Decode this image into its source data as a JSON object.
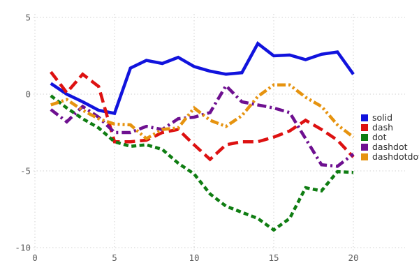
{
  "chart_data": {
    "type": "line",
    "title": "",
    "xlabel": "",
    "ylabel": "",
    "grid": true,
    "legend_position": "right",
    "x_ticks": [
      0,
      5,
      10,
      15,
      20
    ],
    "y_ticks": [
      5,
      0,
      -5,
      -10
    ],
    "xlim": [
      0,
      23.2
    ],
    "ylim": [
      -10.9,
      5.5
    ],
    "x": [
      1,
      2,
      3,
      4,
      5,
      6,
      7,
      8,
      9,
      10,
      11,
      12,
      13,
      14,
      15,
      16,
      17,
      18,
      19,
      20
    ],
    "series": [
      {
        "name": "solid",
        "color": "#1113dd",
        "dash_style": "solid",
        "values": [
          0.7,
          0.0,
          -0.5,
          -1.05,
          -1.25,
          1.7,
          2.2,
          2.0,
          2.4,
          1.8,
          1.5,
          1.3,
          1.4,
          3.3,
          2.5,
          2.55,
          2.25,
          2.6,
          2.75,
          1.3
        ]
      },
      {
        "name": "dash",
        "color": "#dd1111",
        "dash_style": "dash",
        "values": [
          1.45,
          0.1,
          1.3,
          0.5,
          -3.1,
          -3.1,
          -3.0,
          -2.5,
          -2.3,
          -3.3,
          -4.25,
          -3.3,
          -3.1,
          -3.1,
          -2.8,
          -2.4,
          -1.7,
          -2.3,
          -3.0,
          -4.1
        ]
      },
      {
        "name": "dot",
        "color": "#0f7d12",
        "dash_style": "dot",
        "values": [
          -0.1,
          -0.9,
          -1.6,
          -2.2,
          -3.1,
          -3.4,
          -3.3,
          -3.6,
          -4.5,
          -5.2,
          -6.5,
          -7.3,
          -7.7,
          -8.1,
          -8.85,
          -8.1,
          -6.1,
          -6.3,
          -5.05,
          -5.1
        ]
      },
      {
        "name": "dashdot",
        "color": "#6e1090",
        "dash_style": "dashdot",
        "values": [
          -1.0,
          -1.8,
          -0.8,
          -1.5,
          -2.5,
          -2.5,
          -2.1,
          -2.3,
          -1.6,
          -1.5,
          -1.2,
          0.55,
          -0.5,
          -0.7,
          -0.9,
          -1.2,
          -2.9,
          -4.6,
          -4.7,
          -3.9
        ]
      },
      {
        "name": "dashdotdot",
        "color": "#e6930f",
        "dash_style": "dashdotdot",
        "values": [
          -0.7,
          -0.35,
          -1.05,
          -1.6,
          -1.95,
          -2.0,
          -2.9,
          -2.3,
          -2.2,
          -0.9,
          -1.7,
          -2.1,
          -1.4,
          -0.15,
          0.6,
          0.6,
          -0.2,
          -0.8,
          -2.0,
          -2.8
        ]
      }
    ],
    "grid_color": "#d2d2d2",
    "tick_label_color": "#606060",
    "legend_text_color": "#2a2a2a"
  }
}
